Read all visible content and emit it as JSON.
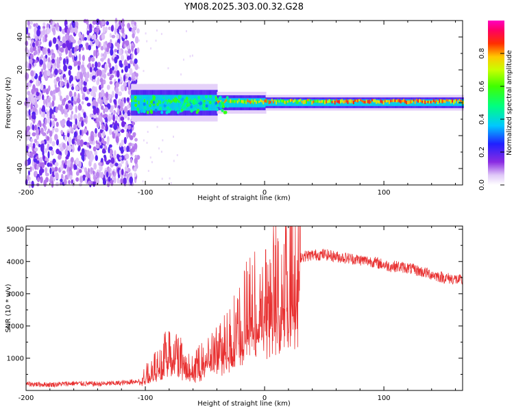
{
  "title": "YM08.2025.303.00.32.G28",
  "chart_data": [
    {
      "type": "heatmap",
      "xlabel": "Height of straight line (km)",
      "ylabel": "Frequency (Hz)",
      "xlim": [
        -200,
        166
      ],
      "ylim": [
        -50,
        50
      ],
      "xticks": [
        "-200",
        "-100",
        "0",
        "100"
      ],
      "yticks": [
        "40",
        "20",
        "0",
        "-20",
        "-40"
      ],
      "xtick_values": [
        -200,
        -100,
        0,
        100
      ],
      "ytick_values": [
        40,
        20,
        0,
        -20,
        -40
      ],
      "colorbar": {
        "label": "Normalized spectral amplitude",
        "range": [
          0,
          1
        ],
        "ticks": [
          "0.0",
          "0.2",
          "0.4",
          "0.6",
          "0.8"
        ],
        "tick_values": [
          0,
          0.2,
          0.4,
          0.6,
          0.8
        ],
        "colormap": "rainbow (white-magenta-blue-cyan-green-yellow-red-magenta)"
      },
      "features": {
        "noise_region_x": [
          -200,
          -110
        ],
        "signal_start_x": -112,
        "signal_center_freq": 0,
        "signal_strong_x": [
          -30,
          166
        ]
      }
    },
    {
      "type": "line",
      "xlabel": "Height of straight line (km)",
      "ylabel": "SNR (10 * v/v)",
      "xlim": [
        -200,
        166
      ],
      "ylim": [
        0,
        5100
      ],
      "xticks": [
        "-200",
        "-100",
        "0",
        "100"
      ],
      "yticks": [
        "1000",
        "2000",
        "3000",
        "4000",
        "5000"
      ],
      "xtick_values": [
        -200,
        -100,
        0,
        100
      ],
      "ytick_values": [
        1000,
        2000,
        3000,
        4000,
        5000
      ],
      "series": [
        {
          "name": "SNR",
          "color": "#e83030",
          "x": [
            -200,
            -180,
            -160,
            -140,
            -120,
            -105,
            -100,
            -95,
            -90,
            -85,
            -80,
            -75,
            -70,
            -65,
            -60,
            -55,
            -50,
            -45,
            -40,
            -35,
            -30,
            -25,
            -20,
            -15,
            -10,
            -5,
            0,
            5,
            10,
            15,
            20,
            25,
            30,
            40,
            50,
            60,
            70,
            80,
            90,
            100,
            105,
            110,
            120,
            130,
            140,
            150,
            160,
            166
          ],
          "values": [
            200,
            180,
            220,
            200,
            230,
            300,
            500,
            700,
            900,
            1100,
            1400,
            1600,
            1100,
            800,
            700,
            900,
            1100,
            1200,
            1300,
            1500,
            1800,
            2000,
            2200,
            2600,
            2800,
            3000,
            3200,
            3300,
            3400,
            3600,
            3800,
            4000,
            4150,
            4200,
            4220,
            4150,
            4100,
            4050,
            4000,
            3900,
            3850,
            3850,
            3800,
            3700,
            3600,
            3500,
            3450,
            3400
          ]
        }
      ]
    }
  ]
}
